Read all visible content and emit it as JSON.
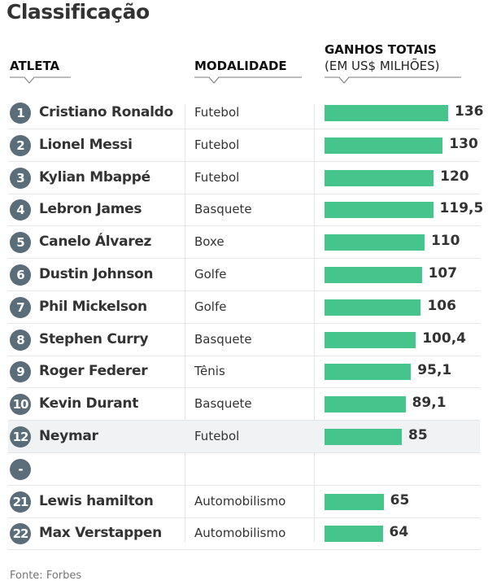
{
  "title": "Classificação",
  "headers": {
    "athlete": "ATLETA",
    "sport": "MODALIDADE",
    "earnings": "GANHOS TOTAIS",
    "earnings_unit": "(EM US$ MILHÕES)"
  },
  "colors": {
    "bar": "#45c48c",
    "badge": "#5b6d78",
    "highlight_row": "#f1f2f4"
  },
  "chart_data": {
    "type": "bar",
    "orientation": "horizontal",
    "title": "Classificação",
    "ylabel": "GANHOS TOTAIS (EM US$ MILHÕES)",
    "rows": [
      {
        "rank": "1",
        "name": "Cristiano Ronaldo",
        "sport": "Futebol",
        "value": 136,
        "label": "136"
      },
      {
        "rank": "2",
        "name": "Lionel Messi",
        "sport": "Futebol",
        "value": 130,
        "label": "130"
      },
      {
        "rank": "3",
        "name": "Kylian Mbappé",
        "sport": "Futebol",
        "value": 120,
        "label": "120"
      },
      {
        "rank": "4",
        "name": "Lebron James",
        "sport": "Basquete",
        "value": 119.5,
        "label": "119,5"
      },
      {
        "rank": "5",
        "name": "Canelo Álvarez",
        "sport": "Boxe",
        "value": 110,
        "label": "110"
      },
      {
        "rank": "6",
        "name": "Dustin Johnson",
        "sport": "Golfe",
        "value": 107,
        "label": "107"
      },
      {
        "rank": "7",
        "name": "Phil Mickelson",
        "sport": "Golfe",
        "value": 106,
        "label": "106"
      },
      {
        "rank": "8",
        "name": "Stephen Curry",
        "sport": "Basquete",
        "value": 100.4,
        "label": "100,4"
      },
      {
        "rank": "9",
        "name": "Roger Federer",
        "sport": "Tênis",
        "value": 95.1,
        "label": "95,1"
      },
      {
        "rank": "10",
        "name": "Kevin Durant",
        "sport": "Basquete",
        "value": 89.1,
        "label": "89,1"
      },
      {
        "rank": "12",
        "name": "Neymar",
        "sport": "Futebol",
        "value": 85,
        "label": "85",
        "highlight": true
      },
      {
        "rank": "-",
        "name": "",
        "sport": "",
        "value": null,
        "label": ""
      },
      {
        "rank": "21",
        "name": "Lewis hamilton",
        "sport": "Automobilismo",
        "value": 65,
        "label": "65"
      },
      {
        "rank": "22",
        "name": "Max Verstappen",
        "sport": "Automobilismo",
        "value": 64,
        "label": "64"
      }
    ]
  },
  "source": "Fonte: Forbes"
}
